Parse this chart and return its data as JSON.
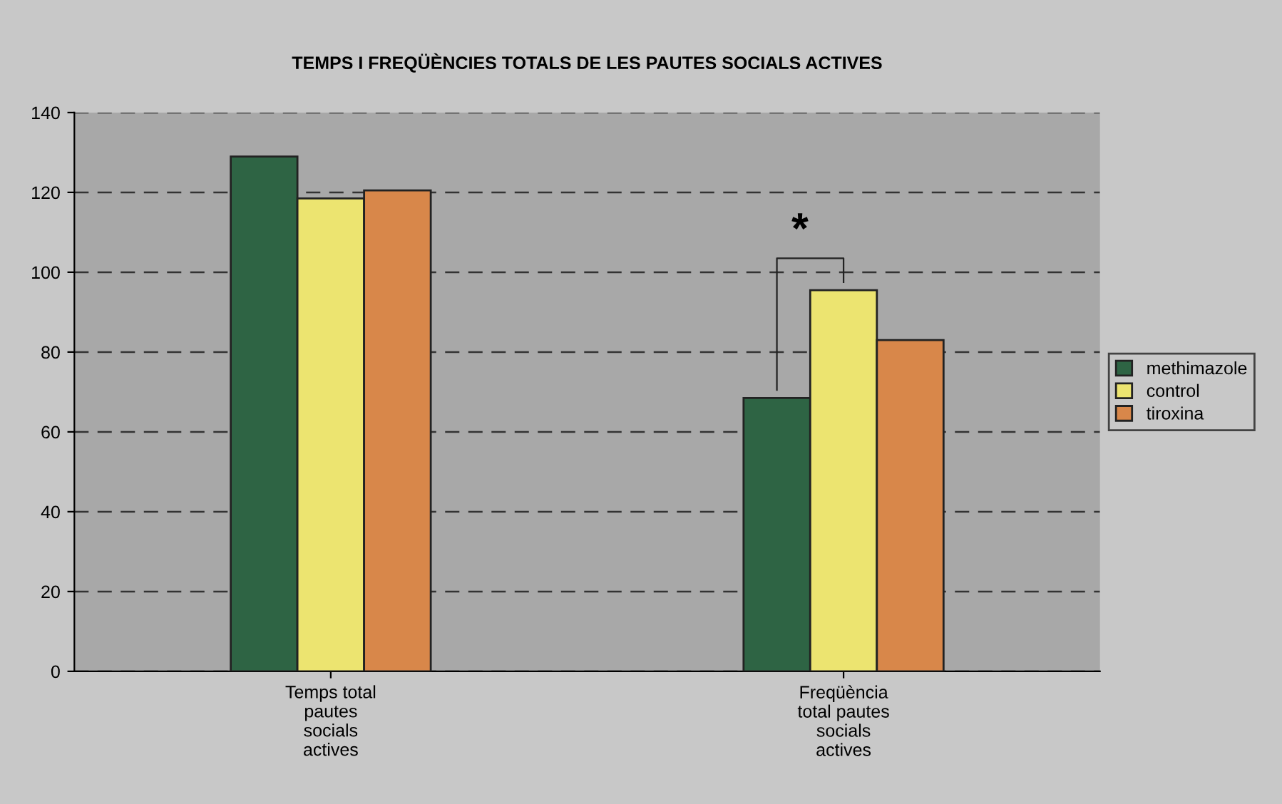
{
  "chart_data": {
    "type": "bar",
    "title": "TEMPS I FREQÜÈNCIES TOTALS DE LES PAUTES SOCIALS ACTIVES",
    "categories": [
      "Temps total\npautes\nsocials\nactives",
      "Freqüència\ntotal pautes\nsocials\nactives"
    ],
    "series": [
      {
        "name": "methimazole",
        "color": "#2e6444",
        "values": [
          129,
          68.5
        ]
      },
      {
        "name": "control",
        "color": "#ece470",
        "values": [
          118.5,
          95.5
        ]
      },
      {
        "name": "tiroxina",
        "color": "#d8874a",
        "values": [
          120.5,
          83
        ]
      }
    ],
    "ylim": [
      0,
      140
    ],
    "yticks": [
      0,
      20,
      40,
      60,
      80,
      100,
      120,
      140
    ],
    "grid": "y",
    "line_style": "dashed",
    "legend": "right",
    "annotations": [
      "*"
    ]
  }
}
